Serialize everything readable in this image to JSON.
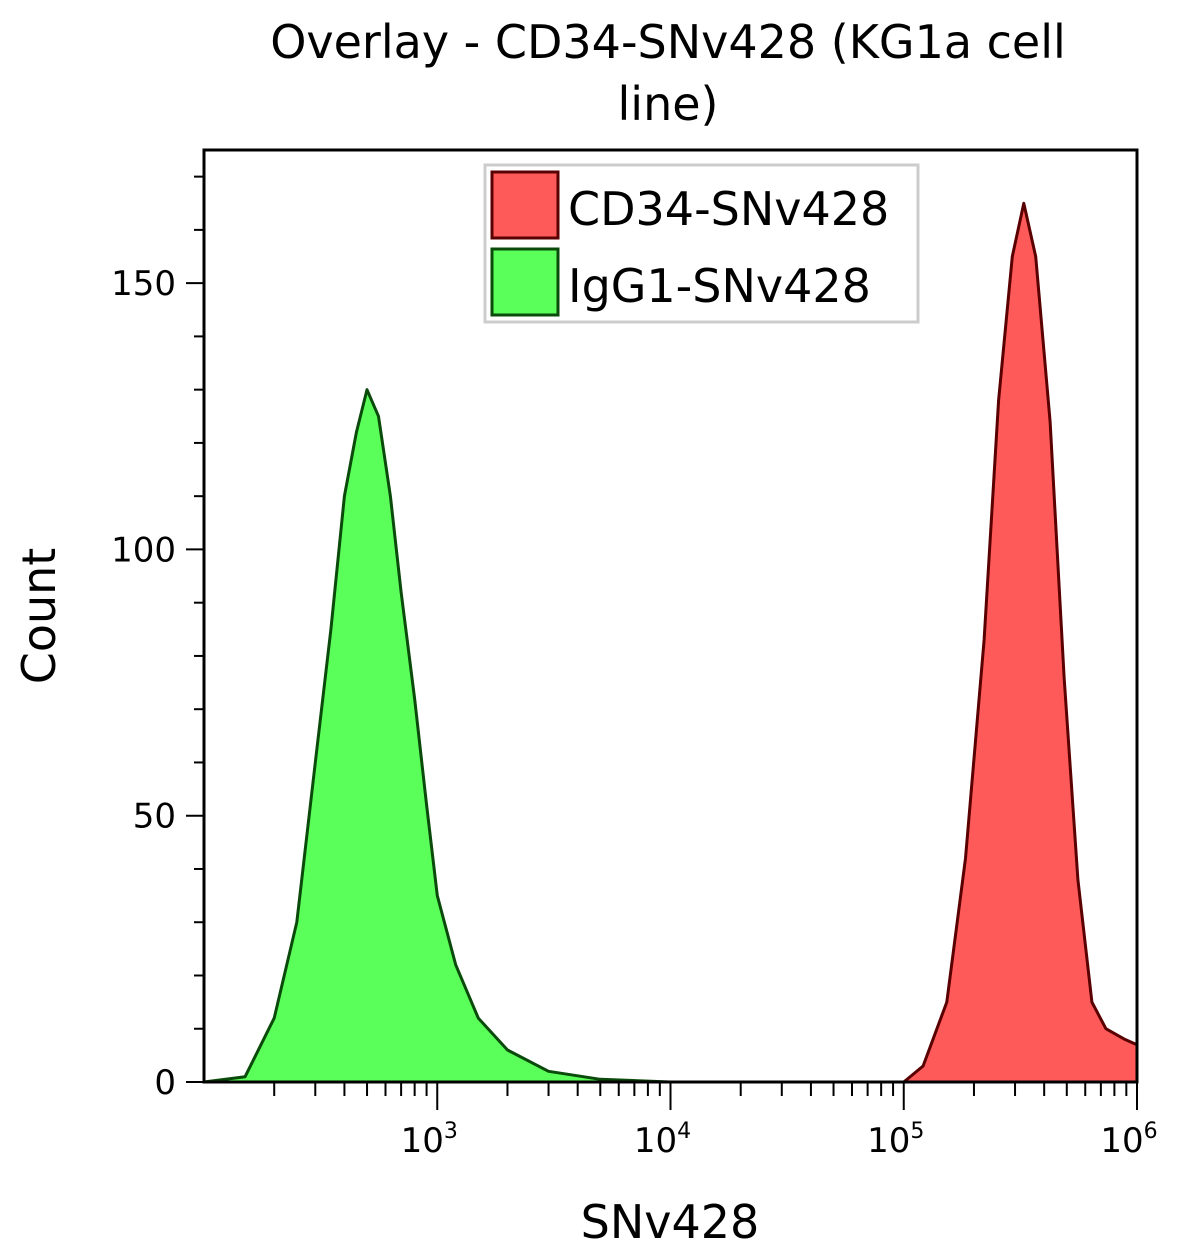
{
  "chart_data": {
    "type": "area",
    "title": "Overlay - CD34-SNv428 (KG1a cell line)",
    "title_lines": [
      "Overlay - CD34-SNv428 (KG1a cell",
      "line)"
    ],
    "xlabel": "SNv428",
    "ylabel": "Count",
    "xscale": "log",
    "xlim": [
      100,
      1000000
    ],
    "ylim": [
      0,
      175
    ],
    "xticks": [
      {
        "value": 1000,
        "base": "10",
        "exp": "3"
      },
      {
        "value": 10000,
        "base": "10",
        "exp": "4"
      },
      {
        "value": 100000,
        "base": "10",
        "exp": "5"
      },
      {
        "value": 1000000,
        "base": "10",
        "exp": "6"
      }
    ],
    "yticks": [
      0,
      50,
      100,
      150
    ],
    "legend_position": "top-right",
    "series": [
      {
        "name": "CD34-SNv428",
        "fill": "#ff5a5a",
        "stroke": "#5a0000",
        "x": [
          100000,
          121000,
          153000,
          184000,
          221000,
          255000,
          292000,
          327000,
          368000,
          424000,
          487000,
          558000,
          641000,
          736000,
          887000,
          1000000
        ],
        "y": [
          0,
          3,
          15,
          42,
          83,
          128,
          155,
          165,
          155,
          124,
          76,
          38,
          15,
          10,
          8,
          7
        ]
      },
      {
        "name": "IgG1-SNv428",
        "fill": "#5aff5a",
        "stroke": "#0a4a0a",
        "x": [
          100,
          150,
          200,
          250,
          300,
          350,
          400,
          450,
          500,
          560,
          630,
          700,
          800,
          900,
          1000,
          1200,
          1500,
          2000,
          3000,
          5000,
          10000
        ],
        "y": [
          0,
          1,
          12,
          30,
          60,
          85,
          110,
          122,
          130,
          125,
          110,
          92,
          72,
          52,
          35,
          22,
          12,
          6,
          2,
          0.5,
          0
        ]
      }
    ]
  }
}
